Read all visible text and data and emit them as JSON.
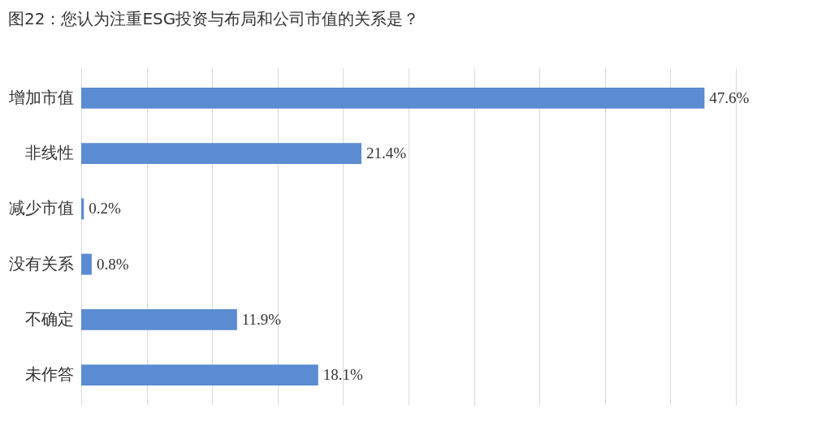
{
  "chart_data": {
    "type": "bar",
    "orientation": "horizontal",
    "title": "图22：您认为注重ESG投资与布局和公司市值的关系是？",
    "categories": [
      "增加市值",
      "非线性",
      "减少市值",
      "没有关系",
      "不确定",
      "未作答"
    ],
    "values": [
      47.6,
      21.4,
      0.2,
      0.8,
      11.9,
      18.1
    ],
    "value_labels": [
      "47.6%",
      "21.4%",
      "0.2%",
      "0.8%",
      "11.9%",
      "18.1%"
    ],
    "color": "#5b8bd1",
    "xlim": [
      0,
      50
    ],
    "xticks": [
      {
        "value": 0,
        "label": null
      },
      {
        "value": 5,
        "label": null
      },
      {
        "value": 10,
        "label": null
      },
      {
        "value": 15,
        "label": null
      },
      {
        "value": 20,
        "label": null
      },
      {
        "value": 25,
        "label": null
      },
      {
        "value": 30,
        "label": null
      },
      {
        "value": 35,
        "label": null
      },
      {
        "value": 40,
        "label": null
      },
      {
        "value": 45,
        "label": null
      },
      {
        "value": 50,
        "label": null
      }
    ],
    "grid": "x",
    "tick_labels": "y"
  }
}
